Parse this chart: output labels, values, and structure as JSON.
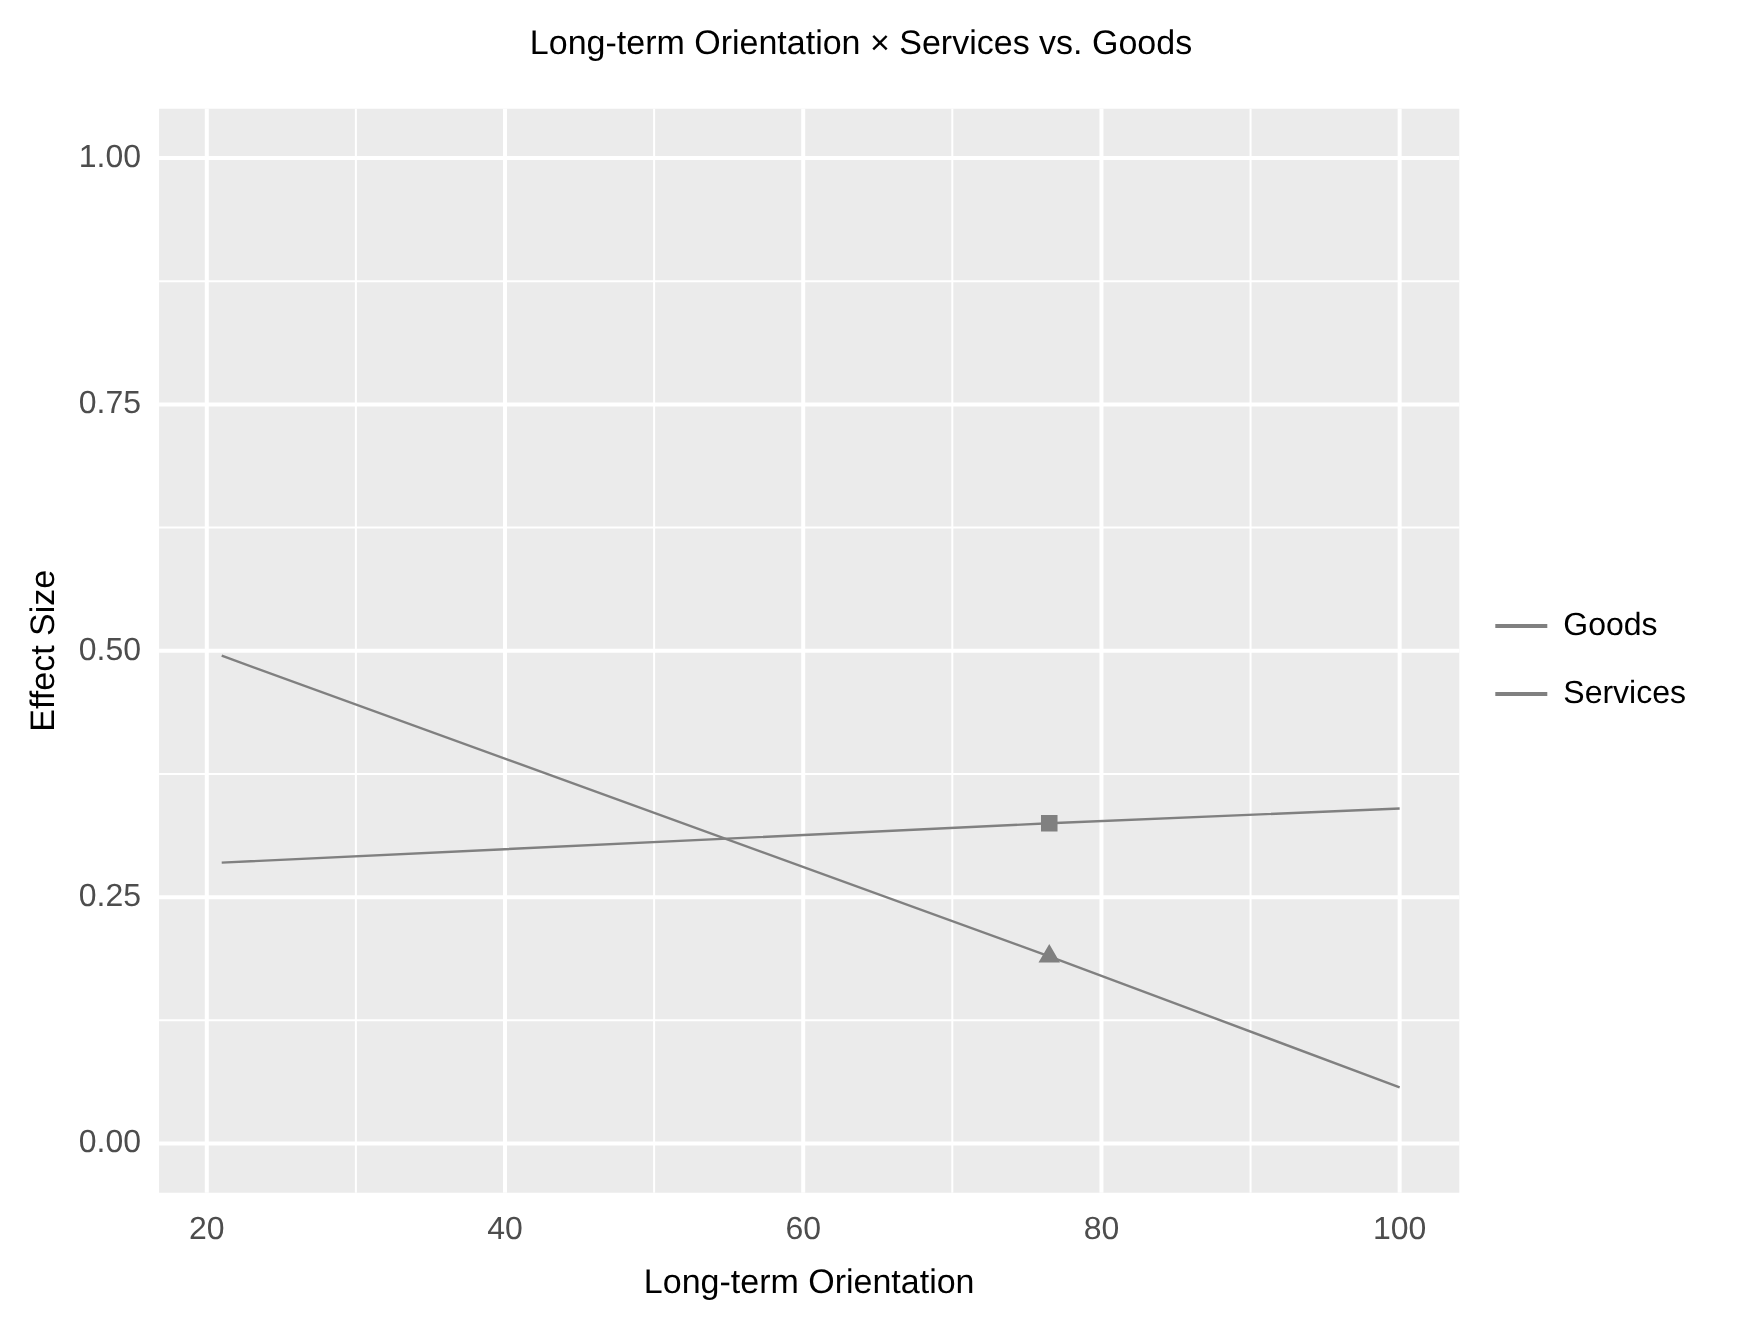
{
  "chart_data": {
    "type": "line",
    "title": "Long-term Orientation × Services vs. Goods",
    "xlabel": "Long-term Orientation",
    "ylabel": "Effect Size",
    "xlim": [
      16.8,
      104
    ],
    "xticks": [
      20,
      40,
      60,
      80,
      100
    ],
    "ylim": [
      -0.05,
      1.05
    ],
    "yticks": [
      {
        "value": 0,
        "label": "0.00"
      },
      {
        "value": 0.25,
        "label": "0.25"
      },
      {
        "value": 0.5,
        "label": "0.50"
      },
      {
        "value": 0.75,
        "label": "0.75"
      },
      {
        "value": 1,
        "label": "1.00"
      }
    ],
    "grid": true,
    "legend": "right",
    "series": [
      {
        "name": "Goods",
        "color": "#808080",
        "x": [
          21,
          76.5,
          100
        ],
        "values": [
          0.285,
          0.325,
          0.34
        ]
      },
      {
        "name": "Services",
        "color": "#808080",
        "x": [
          21,
          76.5,
          100
        ],
        "values": [
          0.495,
          0.19,
          0.057
        ]
      },
      {
        "type": "scatter",
        "color": "#808080",
        "marker": "square",
        "x": [
          76.5
        ],
        "values": [
          0.325
        ]
      },
      {
        "type": "scatter",
        "color": "#808080",
        "marker": "triangle",
        "x": [
          76.5
        ],
        "values": [
          0.19
        ]
      }
    ]
  }
}
